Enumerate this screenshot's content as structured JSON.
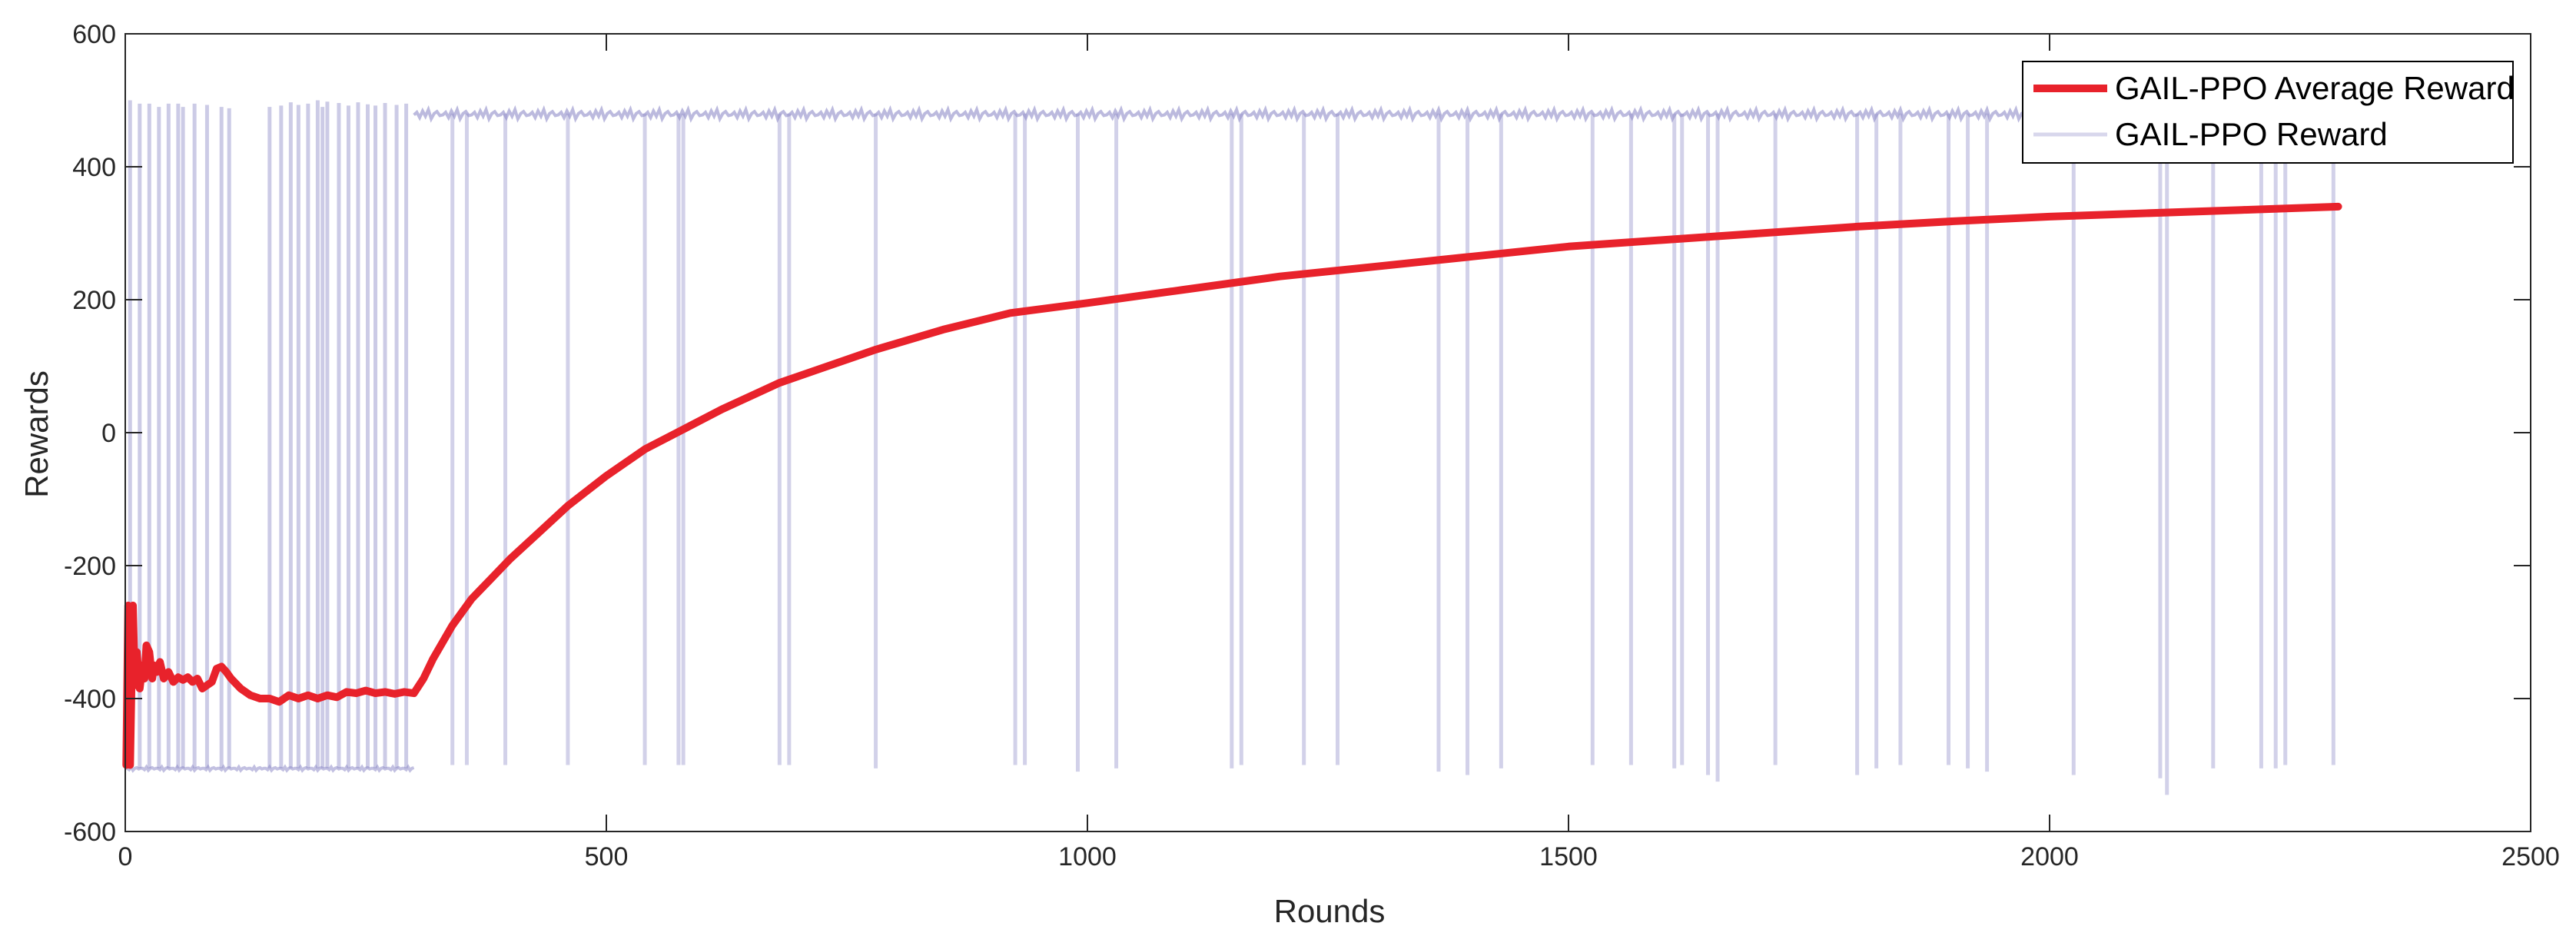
{
  "chart_data": {
    "type": "line",
    "title": "",
    "xlabel": "Rounds",
    "ylabel": "Rewards",
    "xlim": [
      0,
      2500
    ],
    "ylim": [
      -600,
      600
    ],
    "xticks": [
      0,
      500,
      1000,
      1500,
      2000,
      2500
    ],
    "yticks": [
      -600,
      -400,
      -200,
      0,
      200,
      400,
      600
    ],
    "grid": false,
    "legend_position": "top-right",
    "colors": {
      "average": "#e8222b",
      "reward": "#8f8cc8",
      "axis": "#262626",
      "legend_border": "#000000"
    },
    "series": [
      {
        "name": "GAIL-PPO Average Reward",
        "style": "thick-solid",
        "x": [
          1,
          3,
          5,
          8,
          10,
          12,
          15,
          18,
          20,
          22,
          25,
          28,
          30,
          33,
          36,
          40,
          45,
          50,
          55,
          60,
          65,
          70,
          75,
          80,
          85,
          90,
          95,
          100,
          105,
          110,
          120,
          130,
          140,
          150,
          160,
          170,
          180,
          190,
          200,
          210,
          220,
          230,
          240,
          250,
          260,
          270,
          280,
          290,
          300,
          310,
          320,
          340,
          360,
          380,
          400,
          430,
          460,
          500,
          540,
          580,
          620,
          680,
          720,
          780,
          850,
          920,
          1000,
          1100,
          1200,
          1300,
          1400,
          1500,
          1600,
          1700,
          1800,
          1900,
          2000,
          2100,
          2200,
          2300
        ],
        "y": [
          -500,
          -260,
          -500,
          -260,
          -380,
          -330,
          -385,
          -350,
          -370,
          -320,
          -330,
          -370,
          -350,
          -360,
          -345,
          -370,
          -360,
          -375,
          -368,
          -372,
          -368,
          -375,
          -370,
          -385,
          -380,
          -375,
          -355,
          -352,
          -360,
          -370,
          -385,
          -395,
          -400,
          -400,
          -405,
          -395,
          -400,
          -395,
          -400,
          -395,
          -398,
          -390,
          -392,
          -388,
          -392,
          -390,
          -393,
          -390,
          -392,
          -370,
          -340,
          -290,
          -250,
          -220,
          -190,
          -150,
          -110,
          -65,
          -25,
          5,
          35,
          75,
          95,
          125,
          155,
          180,
          195,
          215,
          235,
          250,
          265,
          280,
          290,
          300,
          310,
          318,
          325,
          330,
          335,
          340
        ]
      },
      {
        "name": "GAIL-PPO Reward",
        "style": "thin-translucent",
        "upper_level": 480,
        "lower_level": -505,
        "episode_split": 300,
        "early_lower_y": [
          -505,
          -505,
          -507,
          -503,
          -508,
          -505,
          -504,
          -506
        ],
        "early_upper_y": [
          492,
          480,
          495,
          470,
          493,
          488,
          496,
          475
        ],
        "late_upper_y": [
          478,
          482,
          474,
          484,
          476,
          486,
          472,
          480,
          483,
          477
        ],
        "low_dips": [
          {
            "x": 340,
            "y": -500
          },
          {
            "x": 355,
            "y": -500
          },
          {
            "x": 395,
            "y": -500
          },
          {
            "x": 460,
            "y": -500
          },
          {
            "x": 540,
            "y": -500
          },
          {
            "x": 575,
            "y": -500
          },
          {
            "x": 580,
            "y": -500
          },
          {
            "x": 680,
            "y": -500
          },
          {
            "x": 690,
            "y": -500
          },
          {
            "x": 780,
            "y": -505
          },
          {
            "x": 925,
            "y": -500
          },
          {
            "x": 935,
            "y": -500
          },
          {
            "x": 990,
            "y": -510
          },
          {
            "x": 1030,
            "y": -505
          },
          {
            "x": 1150,
            "y": -505
          },
          {
            "x": 1160,
            "y": -500
          },
          {
            "x": 1225,
            "y": -500
          },
          {
            "x": 1260,
            "y": -500
          },
          {
            "x": 1365,
            "y": -510
          },
          {
            "x": 1395,
            "y": -515
          },
          {
            "x": 1430,
            "y": -505
          },
          {
            "x": 1525,
            "y": -500
          },
          {
            "x": 1565,
            "y": -500
          },
          {
            "x": 1610,
            "y": -505
          },
          {
            "x": 1618,
            "y": -500
          },
          {
            "x": 1645,
            "y": -515
          },
          {
            "x": 1655,
            "y": -525
          },
          {
            "x": 1715,
            "y": -500
          },
          {
            "x": 1800,
            "y": -515
          },
          {
            "x": 1820,
            "y": -505
          },
          {
            "x": 1845,
            "y": -500
          },
          {
            "x": 1895,
            "y": -500
          },
          {
            "x": 1915,
            "y": -505
          },
          {
            "x": 1935,
            "y": -510
          },
          {
            "x": 2025,
            "y": -515
          },
          {
            "x": 2115,
            "y": -520
          },
          {
            "x": 2122,
            "y": -545
          },
          {
            "x": 2170,
            "y": -505
          },
          {
            "x": 2220,
            "y": -505
          },
          {
            "x": 2235,
            "y": -505
          },
          {
            "x": 2245,
            "y": -500
          },
          {
            "x": 2295,
            "y": -500
          }
        ],
        "high_spikes": [
          {
            "x": 5,
            "y": 500
          },
          {
            "x": 15,
            "y": 495
          },
          {
            "x": 25,
            "y": 495
          },
          {
            "x": 35,
            "y": 490
          },
          {
            "x": 45,
            "y": 495
          },
          {
            "x": 55,
            "y": 495
          },
          {
            "x": 60,
            "y": 490
          },
          {
            "x": 72,
            "y": 495
          },
          {
            "x": 85,
            "y": 493
          },
          {
            "x": 100,
            "y": 490
          },
          {
            "x": 108,
            "y": 488
          },
          {
            "x": 150,
            "y": 490
          },
          {
            "x": 162,
            "y": 492
          },
          {
            "x": 172,
            "y": 497
          },
          {
            "x": 180,
            "y": 493
          },
          {
            "x": 190,
            "y": 495
          },
          {
            "x": 200,
            "y": 500
          },
          {
            "x": 205,
            "y": 490
          },
          {
            "x": 210,
            "y": 498
          },
          {
            "x": 222,
            "y": 496
          },
          {
            "x": 232,
            "y": 492
          },
          {
            "x": 242,
            "y": 497
          },
          {
            "x": 252,
            "y": 494
          },
          {
            "x": 260,
            "y": 492
          },
          {
            "x": 270,
            "y": 496
          },
          {
            "x": 282,
            "y": 493
          },
          {
            "x": 292,
            "y": 495
          }
        ]
      }
    ]
  }
}
